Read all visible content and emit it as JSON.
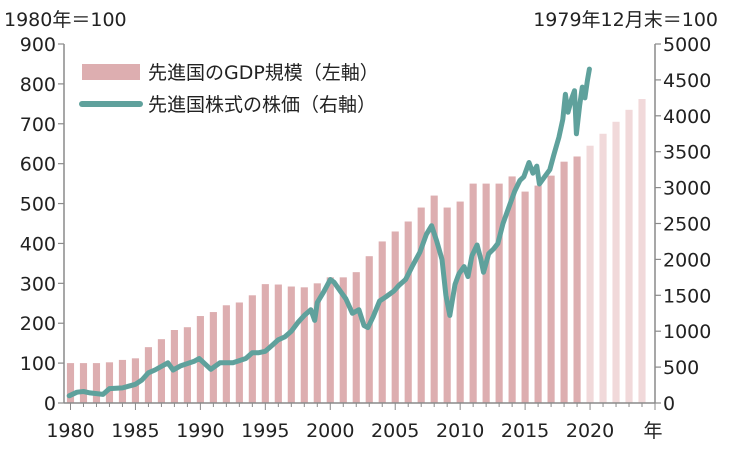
{
  "chart_data": {
    "type": "bar+line",
    "left_unit_label": "1980年＝100",
    "right_unit_label": "1979年12月末＝100",
    "x_axis_suffix": "年",
    "x_tick_labels": [
      "1980",
      "1985",
      "1990",
      "1995",
      "2000",
      "2005",
      "2010",
      "2015",
      "2020"
    ],
    "left_axis": {
      "min": 0,
      "max": 900,
      "step": 100
    },
    "right_axis": {
      "min": 0,
      "max": 5000,
      "step": 500
    },
    "legend": [
      {
        "key": "gdp",
        "label": "先進国のGDP規模（左軸）"
      },
      {
        "key": "stock",
        "label": "先進国株式の株価（右軸）"
      }
    ],
    "colors": {
      "gdp_bar": "#ddaeb0",
      "gdp_bar_forecast": "#f1d9da",
      "stock_line": "#5fa19c",
      "axis": "#8a8a8a"
    },
    "gdp_series": {
      "name": "先進国のGDP規模（左軸）",
      "axis": "left",
      "years": [
        1980,
        1981,
        1982,
        1983,
        1984,
        1985,
        1986,
        1987,
        1988,
        1989,
        1990,
        1991,
        1992,
        1993,
        1994,
        1995,
        1996,
        1997,
        1998,
        1999,
        2000,
        2001,
        2002,
        2003,
        2004,
        2005,
        2006,
        2007,
        2008,
        2009,
        2010,
        2011,
        2012,
        2013,
        2014,
        2015,
        2016,
        2017,
        2018,
        2019,
        2020,
        2021,
        2022,
        2023,
        2024
      ],
      "values": [
        100,
        100,
        100,
        102,
        108,
        112,
        140,
        160,
        183,
        190,
        218,
        228,
        245,
        252,
        270,
        298,
        297,
        292,
        290,
        300,
        315,
        315,
        328,
        368,
        405,
        430,
        455,
        490,
        520,
        490,
        505,
        550,
        550,
        550,
        568,
        530,
        545,
        570,
        605,
        618,
        645,
        675,
        705,
        735,
        762
      ],
      "forecast_from": 2020
    },
    "stock_series": {
      "name": "先進国株式の株価（右軸）",
      "axis": "right",
      "points": [
        [
          1979.9,
          100
        ],
        [
          1980.5,
          150
        ],
        [
          1981.0,
          160
        ],
        [
          1981.5,
          140
        ],
        [
          1982.5,
          120
        ],
        [
          1983.0,
          200
        ],
        [
          1984.0,
          210
        ],
        [
          1985.0,
          260
        ],
        [
          1985.5,
          320
        ],
        [
          1986.0,
          420
        ],
        [
          1986.5,
          460
        ],
        [
          1987.5,
          560
        ],
        [
          1987.9,
          460
        ],
        [
          1988.5,
          520
        ],
        [
          1989.5,
          580
        ],
        [
          1989.9,
          620
        ],
        [
          1990.5,
          520
        ],
        [
          1990.8,
          470
        ],
        [
          1991.5,
          560
        ],
        [
          1992.5,
          560
        ],
        [
          1993.5,
          620
        ],
        [
          1994.0,
          700
        ],
        [
          1994.5,
          700
        ],
        [
          1995.0,
          720
        ],
        [
          1995.5,
          800
        ],
        [
          1996.0,
          880
        ],
        [
          1996.5,
          920
        ],
        [
          1997.0,
          1000
        ],
        [
          1997.5,
          1120
        ],
        [
          1998.0,
          1220
        ],
        [
          1998.5,
          1300
        ],
        [
          1998.8,
          1150
        ],
        [
          1999.0,
          1400
        ],
        [
          1999.5,
          1550
        ],
        [
          2000.0,
          1720
        ],
        [
          2000.3,
          1680
        ],
        [
          2000.8,
          1550
        ],
        [
          2001.2,
          1450
        ],
        [
          2001.7,
          1250
        ],
        [
          2002.2,
          1300
        ],
        [
          2002.6,
          1080
        ],
        [
          2002.9,
          1050
        ],
        [
          2003.3,
          1200
        ],
        [
          2003.8,
          1420
        ],
        [
          2004.3,
          1480
        ],
        [
          2004.9,
          1560
        ],
        [
          2005.3,
          1640
        ],
        [
          2005.8,
          1720
        ],
        [
          2006.3,
          1900
        ],
        [
          2006.9,
          2100
        ],
        [
          2007.4,
          2350
        ],
        [
          2007.8,
          2470
        ],
        [
          2008.2,
          2250
        ],
        [
          2008.6,
          2000
        ],
        [
          2008.9,
          1500
        ],
        [
          2009.2,
          1220
        ],
        [
          2009.6,
          1650
        ],
        [
          2009.9,
          1800
        ],
        [
          2010.3,
          1900
        ],
        [
          2010.6,
          1760
        ],
        [
          2010.9,
          2050
        ],
        [
          2011.3,
          2200
        ],
        [
          2011.6,
          2000
        ],
        [
          2011.8,
          1820
        ],
        [
          2012.2,
          2080
        ],
        [
          2012.6,
          2150
        ],
        [
          2012.9,
          2220
        ],
        [
          2013.3,
          2500
        ],
        [
          2013.8,
          2750
        ],
        [
          2014.2,
          2950
        ],
        [
          2014.6,
          3100
        ],
        [
          2014.9,
          3150
        ],
        [
          2015.3,
          3350
        ],
        [
          2015.6,
          3200
        ],
        [
          2015.9,
          3300
        ],
        [
          2016.1,
          3050
        ],
        [
          2016.5,
          3150
        ],
        [
          2016.9,
          3250
        ],
        [
          2017.2,
          3450
        ],
        [
          2017.6,
          3700
        ],
        [
          2017.9,
          3950
        ],
        [
          2018.1,
          4300
        ],
        [
          2018.3,
          4050
        ],
        [
          2018.6,
          4250
        ],
        [
          2018.8,
          4350
        ],
        [
          2018.95,
          3750
        ],
        [
          2019.2,
          4150
        ],
        [
          2019.4,
          4400
        ],
        [
          2019.6,
          4250
        ],
        [
          2019.8,
          4500
        ],
        [
          2019.95,
          4650
        ]
      ]
    }
  }
}
